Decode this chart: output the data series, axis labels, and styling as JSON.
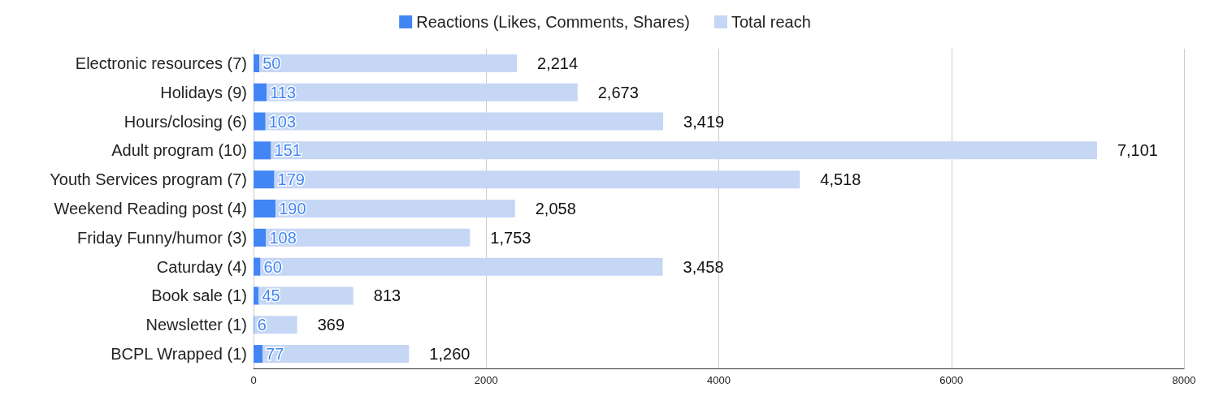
{
  "chart_data": {
    "type": "bar",
    "orientation": "horizontal",
    "stacked": true,
    "categories": [
      "Electronic resources (7)",
      "Holidays (9)",
      "Hours/closing (6)",
      "Adult program (10)",
      "Youth Services program (7)",
      "Weekend Reading post (4)",
      "Friday Funny/humor (3)",
      "Caturday (4)",
      "Book sale (1)",
      "Newsletter (1)",
      "BCPL Wrapped (1)"
    ],
    "series": [
      {
        "name": "Reactions (Likes, Comments, Shares)",
        "color": "#4285f4",
        "values": [
          50,
          113,
          103,
          151,
          179,
          190,
          108,
          60,
          45,
          6,
          77
        ]
      },
      {
        "name": "Total reach",
        "color": "#c6d6f5",
        "values": [
          2214,
          2673,
          3419,
          7101,
          4518,
          2058,
          1753,
          3458,
          813,
          369,
          1260
        ],
        "value_labels": [
          "2,214",
          "2,673",
          "3,419",
          "7,101",
          "4,518",
          "2,058",
          "1,753",
          "3,458",
          "813",
          "369",
          "1,260"
        ]
      }
    ],
    "xlim": [
      0,
      8000
    ],
    "xticks": [
      0,
      2000,
      4000,
      6000,
      8000
    ],
    "grid": "x",
    "legend": "top",
    "data_labels": true
  }
}
